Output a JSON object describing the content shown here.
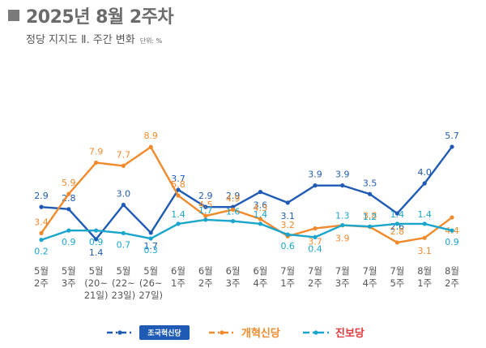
{
  "header": {
    "title": "2025년 8월 2주차"
  },
  "subheader": {
    "text": "정당 지지도 Ⅱ. 주간 변화",
    "unit": "단위: %"
  },
  "colors": {
    "blue": "#1f5bb5",
    "orange": "#f08a2c",
    "cyan": "#1aa6cc"
  },
  "chart_data": {
    "type": "line",
    "categories": [
      "5월\n2주",
      "5월\n3주",
      "5월\n(20~\n21일)",
      "5월\n(22~\n23일)",
      "5월\n(26~\n27일)",
      "6월\n1주",
      "6월\n2주",
      "6월\n3주",
      "6월\n4주",
      "7월\n1주",
      "7월\n2주",
      "7월\n3주",
      "7월\n4주",
      "7월\n5주",
      "8월\n1주",
      "8월\n2주"
    ],
    "ylim": [
      0,
      10
    ],
    "series": [
      {
        "name": "조국혁신당",
        "color": "#1f5bb5",
        "values": [
          2.9,
          2.8,
          1.4,
          3.0,
          1.7,
          3.7,
          2.9,
          2.9,
          3.6,
          3.1,
          3.9,
          3.9,
          3.5,
          2.6,
          4.0,
          5.7
        ]
      },
      {
        "name": "개혁신당",
        "color": "#f08a2c",
        "values": [
          3.4,
          5.9,
          7.9,
          7.7,
          8.9,
          5.8,
          4.5,
          4.9,
          4.3,
          3.2,
          3.7,
          3.9,
          3.8,
          2.8,
          3.1,
          4.4
        ]
      },
      {
        "name": "진보당",
        "color": "#1aa6cc",
        "values": [
          0.2,
          0.9,
          0.9,
          0.7,
          0.3,
          1.4,
          1.7,
          1.6,
          1.4,
          0.6,
          0.4,
          1.3,
          1.2,
          1.4,
          1.4,
          0.9
        ]
      }
    ]
  },
  "legend": [
    {
      "label": "조국혁신당"
    },
    {
      "label": "개혁신당"
    },
    {
      "label": "진보당"
    }
  ]
}
